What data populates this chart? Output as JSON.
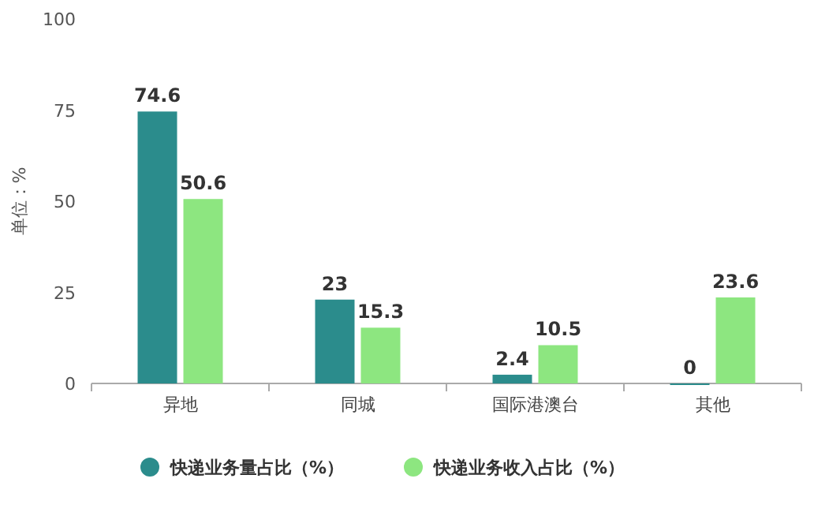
{
  "chart_data": {
    "type": "bar",
    "ylabel": "单位：%",
    "categories": [
      "异地",
      "同城",
      "国际港澳台",
      "其他"
    ],
    "series": [
      {
        "name": "快递业务量占比（%）",
        "color": "#2b8c8c",
        "values": [
          74.6,
          23,
          2.4,
          0
        ]
      },
      {
        "name": "快递业务收入占比（%）",
        "color": "#8de680",
        "values": [
          50.6,
          15.3,
          10.5,
          23.6
        ]
      }
    ],
    "ylim": [
      0,
      100
    ],
    "yticks": [
      0,
      25,
      50,
      75,
      100
    ],
    "grid": false,
    "legend": "bottom",
    "data_labels": true
  }
}
